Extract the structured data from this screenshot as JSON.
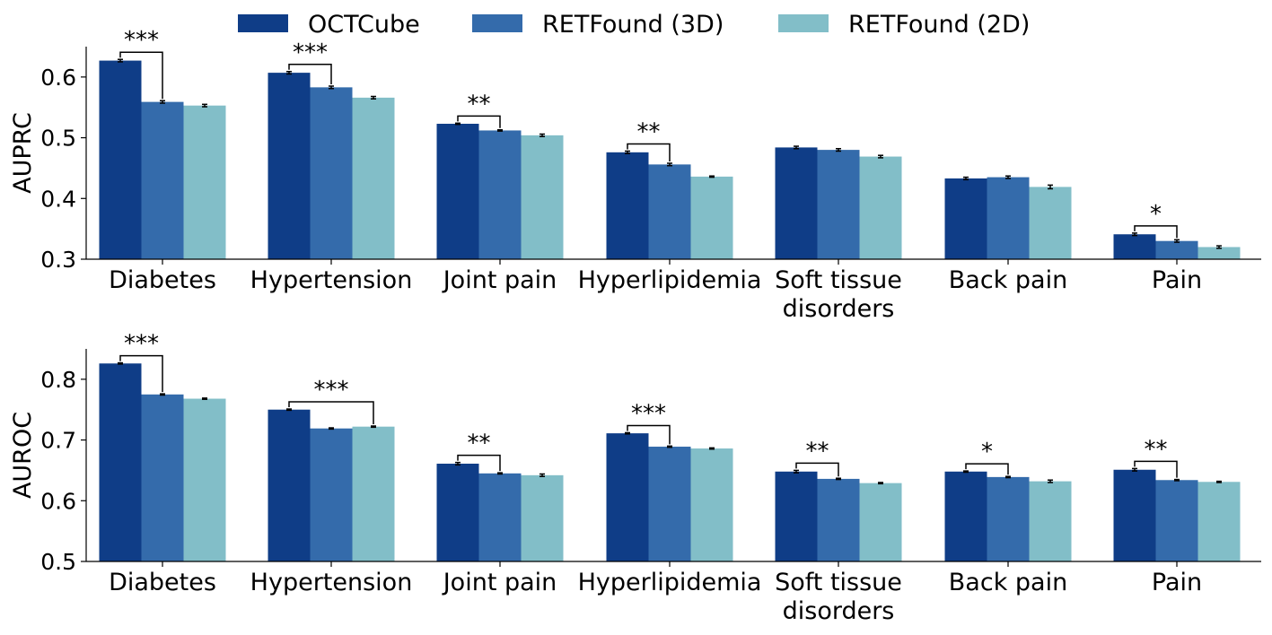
{
  "legend": {
    "position": "top-center",
    "entries": [
      {
        "label": "OCTCube",
        "color": "#0f3d87"
      },
      {
        "label": "RETFound (3D)",
        "color": "#346bab"
      },
      {
        "label": "RETFound (2D)",
        "color": "#82bec8"
      }
    ]
  },
  "chart_data": [
    {
      "type": "bar",
      "ylabel": "AUPRC",
      "ylim": [
        0.3,
        0.65
      ],
      "yticks": [
        "0.3",
        "0.4",
        "0.5",
        "0.6"
      ],
      "grid": false,
      "categories": [
        "Diabetes",
        "Hypertension",
        "Joint pain",
        "Hyperlipidemia",
        "Soft tissue disorders",
        "Back pain",
        "Pain"
      ],
      "category_lines": [
        [
          "Diabetes"
        ],
        [
          "Hypertension"
        ],
        [
          "Joint pain"
        ],
        [
          "Hyperlipidemia"
        ],
        [
          "Soft tissue",
          "disorders"
        ],
        [
          "Back pain"
        ],
        [
          "Pain"
        ]
      ],
      "series": [
        {
          "name": "OCTCube",
          "color": "#0f3d87",
          "values": [
            0.627,
            0.607,
            0.523,
            0.476,
            0.484,
            0.433,
            0.341
          ],
          "errors": [
            0.002,
            0.002,
            0.001,
            0.002,
            0.002,
            0.002,
            0.002
          ]
        },
        {
          "name": "RETFound (3D)",
          "color": "#346bab",
          "values": [
            0.559,
            0.583,
            0.512,
            0.456,
            0.48,
            0.435,
            0.33
          ],
          "errors": [
            0.002,
            0.002,
            0.001,
            0.002,
            0.002,
            0.002,
            0.002
          ]
        },
        {
          "name": "RETFound (2D)",
          "color": "#82bec8",
          "values": [
            0.553,
            0.566,
            0.504,
            0.436,
            0.469,
            0.419,
            0.32
          ],
          "errors": [
            0.002,
            0.002,
            0.002,
            0.001,
            0.002,
            0.003,
            0.002
          ]
        }
      ],
      "significance": [
        {
          "category": 0,
          "from": 0,
          "to": 1,
          "label": "***"
        },
        {
          "category": 1,
          "from": 0,
          "to": 1,
          "label": "***"
        },
        {
          "category": 2,
          "from": 0,
          "to": 1,
          "label": "**"
        },
        {
          "category": 3,
          "from": 0,
          "to": 1,
          "label": "**"
        },
        {
          "category": 6,
          "from": 0,
          "to": 1,
          "label": "*"
        }
      ]
    },
    {
      "type": "bar",
      "ylabel": "AUROC",
      "ylim": [
        0.5,
        0.85
      ],
      "yticks": [
        "0.5",
        "0.6",
        "0.7",
        "0.8"
      ],
      "grid": false,
      "categories": [
        "Diabetes",
        "Hypertension",
        "Joint pain",
        "Hyperlipidemia",
        "Soft tissue disorders",
        "Back pain",
        "Pain"
      ],
      "category_lines": [
        [
          "Diabetes"
        ],
        [
          "Hypertension"
        ],
        [
          "Joint pain"
        ],
        [
          "Hyperlipidemia"
        ],
        [
          "Soft tissue",
          "disorders"
        ],
        [
          "Back pain"
        ],
        [
          "Pain"
        ]
      ],
      "series": [
        {
          "name": "OCTCube",
          "color": "#0f3d87",
          "values": [
            0.826,
            0.75,
            0.661,
            0.711,
            0.648,
            0.648,
            0.651
          ],
          "errors": [
            0.001,
            0.001,
            0.002,
            0.001,
            0.002,
            0.001,
            0.002
          ]
        },
        {
          "name": "RETFound (3D)",
          "color": "#346bab",
          "values": [
            0.775,
            0.719,
            0.645,
            0.689,
            0.636,
            0.639,
            0.634
          ],
          "errors": [
            0.001,
            0.001,
            0.001,
            0.001,
            0.001,
            0.001,
            0.001
          ]
        },
        {
          "name": "RETFound (2D)",
          "color": "#82bec8",
          "values": [
            0.768,
            0.722,
            0.642,
            0.686,
            0.629,
            0.632,
            0.631
          ],
          "errors": [
            0.001,
            0.001,
            0.002,
            0.001,
            0.001,
            0.002,
            0.001
          ]
        }
      ],
      "significance": [
        {
          "category": 0,
          "from": 0,
          "to": 1,
          "label": "***"
        },
        {
          "category": 1,
          "from": 0,
          "to": 2,
          "label": "***"
        },
        {
          "category": 2,
          "from": 0,
          "to": 1,
          "label": "**"
        },
        {
          "category": 3,
          "from": 0,
          "to": 1,
          "label": "***"
        },
        {
          "category": 4,
          "from": 0,
          "to": 1,
          "label": "**"
        },
        {
          "category": 5,
          "from": 0,
          "to": 1,
          "label": "*"
        },
        {
          "category": 6,
          "from": 0,
          "to": 1,
          "label": "**"
        }
      ]
    }
  ]
}
